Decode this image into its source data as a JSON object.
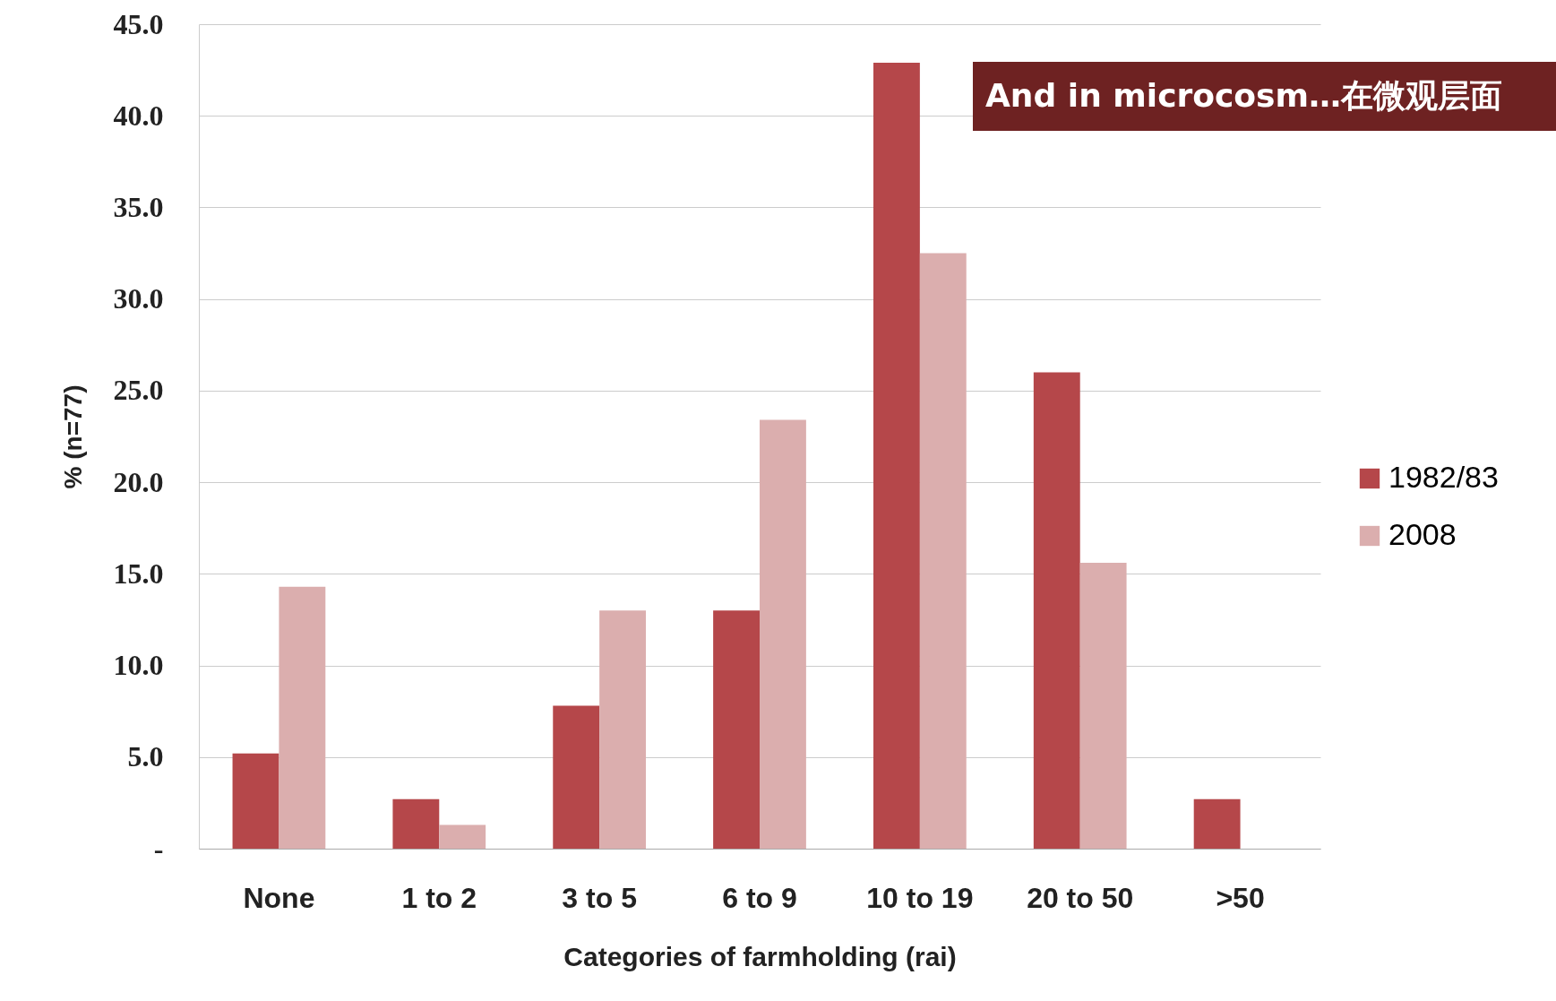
{
  "chart_data": {
    "type": "bar",
    "xlabel": "Categories of farmholding (rai)",
    "ylabel": "% (n=77)",
    "annotations": [
      "And in microcosm…在微观层面"
    ],
    "categories": [
      "None",
      "1 to 2",
      "3 to 5",
      "6 to 9",
      "10 to 19",
      "20 to 50",
      ">50"
    ],
    "series": [
      {
        "name": "1982/83",
        "color": "#b5474a",
        "values": [
          5.2,
          2.7,
          7.8,
          13.0,
          42.9,
          26.0,
          2.7
        ]
      },
      {
        "name": "2008",
        "color": "#dbaeae",
        "values": [
          14.3,
          1.3,
          13.0,
          23.4,
          32.5,
          15.6,
          null
        ]
      }
    ],
    "ylim": [
      0,
      45
    ],
    "yticks": [
      {
        "value": 0,
        "label": "-"
      },
      {
        "value": 5,
        "label": "5.0"
      },
      {
        "value": 10,
        "label": "10.0"
      },
      {
        "value": 15,
        "label": "15.0"
      },
      {
        "value": 20,
        "label": "20.0"
      },
      {
        "value": 25,
        "label": "25.0"
      },
      {
        "value": 30,
        "label": "30.0"
      },
      {
        "value": 35,
        "label": "35.0"
      },
      {
        "value": 40,
        "label": "40.0"
      },
      {
        "value": 45,
        "label": "45.0"
      }
    ],
    "grid": "y",
    "legend": "right"
  }
}
